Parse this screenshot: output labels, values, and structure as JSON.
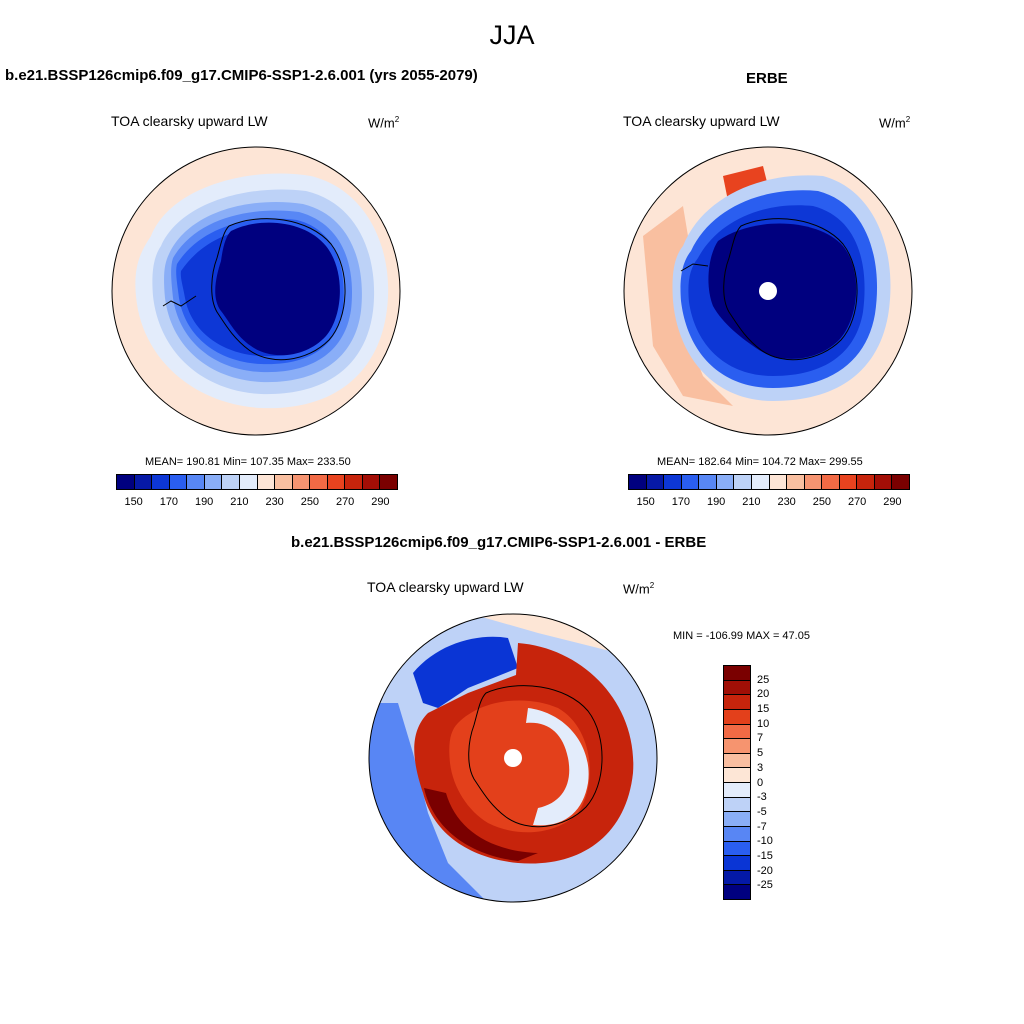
{
  "page": {
    "season": "JJA"
  },
  "colors": {
    "abs_scale": [
      "#00007f",
      "#0619a6",
      "#0d37d6",
      "#2a5ef0",
      "#5887f5",
      "#8aaef7",
      "#bdd2f7",
      "#e3ecfb",
      "#fde5d6",
      "#f9bfa0",
      "#f69471",
      "#f26a45",
      "#e8431f",
      "#c7240c",
      "#a30e06",
      "#7a0000"
    ],
    "diff_scale": [
      "#7a0000",
      "#a00f06",
      "#c7240c",
      "#e3401b",
      "#f26a45",
      "#f6946f",
      "#f9bea0",
      "#fde6d6",
      "#e3ecfb",
      "#bed2f7",
      "#8aaef6",
      "#5886f4",
      "#2a5ef0",
      "#0a35d5",
      "#0419a6",
      "#00007f"
    ],
    "land": "#ffffff",
    "outline": "#000000"
  },
  "panels": {
    "model": {
      "title": "b.e21.BSSP126cmip6.f09_g17.CMIP6-SSP1-2.6.001 (yrs 2055-2079)",
      "variable": "TOA clearsky upward LW",
      "units": "W/m",
      "units_sup": "2",
      "stats": "MEAN= 190.81  Min= 107.35  Max= 233.50",
      "ticks": [
        "150",
        "170",
        "190",
        "210",
        "230",
        "250",
        "270",
        "290"
      ]
    },
    "obs": {
      "title": "ERBE",
      "variable": "TOA clearsky upward LW",
      "units": "W/m",
      "units_sup": "2",
      "stats": "MEAN= 182.64  Min= 104.72  Max= 299.55",
      "ticks": [
        "150",
        "170",
        "190",
        "210",
        "230",
        "250",
        "270",
        "290"
      ]
    },
    "diff": {
      "title": "b.e21.BSSP126cmip6.f09_g17.CMIP6-SSP1-2.6.001 - ERBE",
      "variable": "TOA clearsky upward LW",
      "units": "W/m",
      "units_sup": "2",
      "stats": "MIN = -106.99 MAX =  47.05",
      "ticks": [
        "25",
        "20",
        "15",
        "10",
        "7",
        "5",
        "3",
        "0",
        "-3",
        "-5",
        "-7",
        "-10",
        "-15",
        "-20",
        "-25"
      ]
    }
  }
}
